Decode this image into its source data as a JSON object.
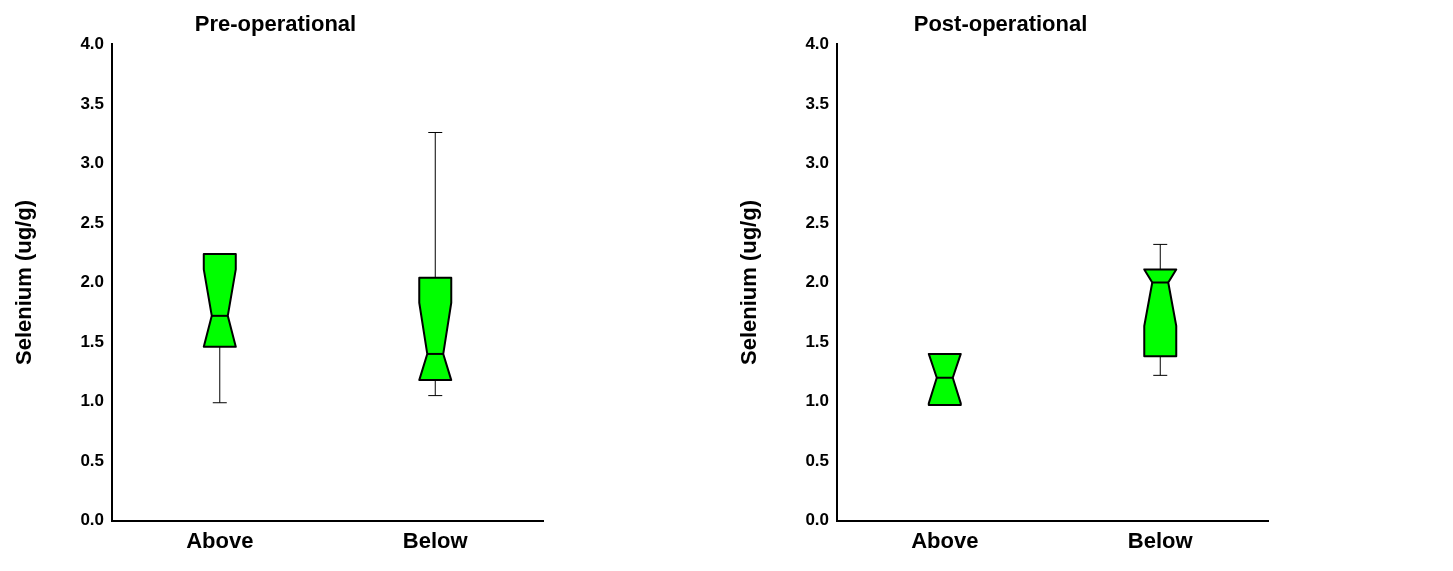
{
  "chart_data": [
    {
      "type": "box",
      "title": "Pre-operational",
      "ylabel": "Selenium (ug/g)",
      "categories": [
        "Above",
        "Below"
      ],
      "ylim": [
        0,
        4
      ],
      "yticks": [
        {
          "value": 0,
          "label": "0.0"
        },
        0.5,
        {
          "value": 1,
          "label": "1.0"
        },
        1.5,
        {
          "value": 2,
          "label": "2.0"
        },
        2.5,
        {
          "value": 3,
          "label": "3.0"
        },
        3.5,
        {
          "value": 4,
          "label": "4.0"
        }
      ],
      "series": [
        {
          "color": "#00ff00",
          "boxes": [
            {
              "low": 0.99,
              "q1": 1.46,
              "median": 1.72,
              "q3": 2.24,
              "high": 2.24
            },
            {
              "low": 1.05,
              "q1": 1.18,
              "median": 1.4,
              "q3": 2.04,
              "high": 3.26
            }
          ]
        }
      ]
    },
    {
      "type": "box",
      "title": "Post-operational",
      "ylabel": "Selenium (ug/g)",
      "categories": [
        "Above",
        "Below"
      ],
      "ylim": [
        0,
        4
      ],
      "yticks": [
        {
          "value": 0,
          "label": "0.0"
        },
        0.5,
        {
          "value": 1,
          "label": "1.0"
        },
        1.5,
        {
          "value": 2,
          "label": "2.0"
        },
        2.5,
        {
          "value": 3,
          "label": "3.0"
        },
        3.5,
        {
          "value": 4,
          "label": "4.0"
        }
      ],
      "series": [
        {
          "color": "#00ff00",
          "boxes": [
            {
              "low": 0.97,
              "q1": 0.97,
              "median": 1.2,
              "q3": 1.4,
              "high": 1.4
            },
            {
              "low": 1.22,
              "q1": 1.38,
              "median": 2.0,
              "q3": 2.11,
              "high": 2.32
            }
          ]
        }
      ]
    }
  ]
}
